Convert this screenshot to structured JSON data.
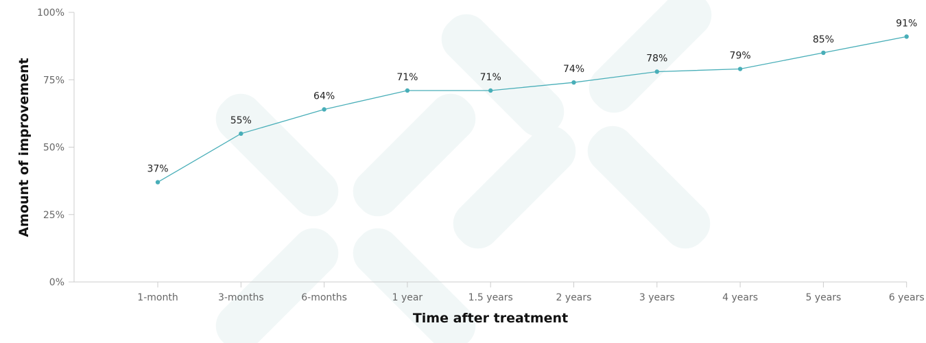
{
  "chart_data": {
    "type": "line",
    "title": "",
    "xlabel": "Time after treatment",
    "ylabel": "Amount of improvement",
    "categories": [
      "1-month",
      "3-months",
      "6-months",
      "1 year",
      "1.5 years",
      "2 years",
      "3 years",
      "4 years",
      "5 years",
      "6 years"
    ],
    "series": [
      {
        "values": [
          37,
          55,
          64,
          71,
          71,
          74,
          78,
          79,
          85,
          91
        ],
        "labels": [
          "37%",
          "55%",
          "64%",
          "71%",
          "71%",
          "74%",
          "78%",
          "79%",
          "85%",
          "91%"
        ],
        "color": "#48aeb8"
      }
    ],
    "ylim": [
      0,
      100
    ],
    "yticks": [
      0,
      25,
      50,
      75,
      100
    ],
    "ytick_labels": [
      "0%",
      "25%",
      "50%",
      "75%",
      "100%"
    ],
    "grid": false,
    "legend": "none"
  },
  "style": {
    "line_color": "#48aeb8",
    "axis_color": "#cccccc",
    "watermark_color": "#f1f7f7"
  }
}
